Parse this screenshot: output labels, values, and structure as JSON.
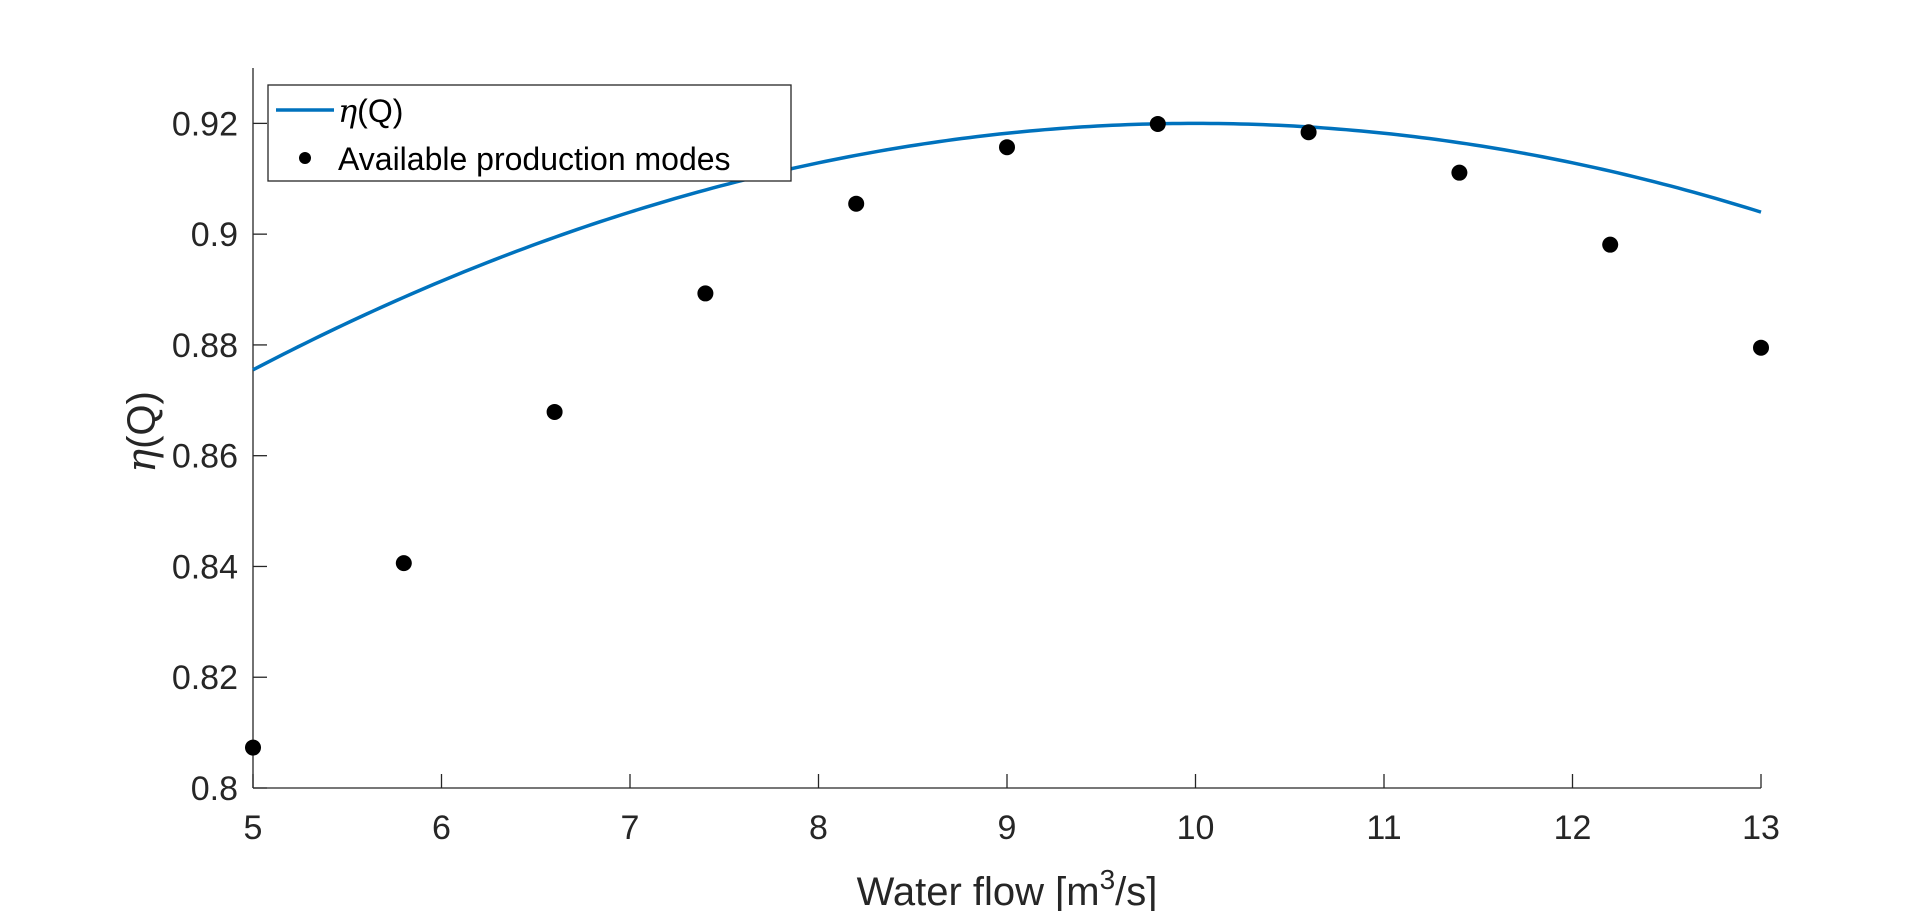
{
  "chart_data": {
    "type": "line",
    "title": "",
    "xlabel": {
      "base": "Water flow [m",
      "sup": "3",
      "rest": "/s]"
    },
    "ylabel": {
      "symbol": "η",
      "rest": "(Q)"
    },
    "xlim": [
      5,
      13
    ],
    "ylim": [
      0.8,
      0.93
    ],
    "xticks": [
      5,
      6,
      7,
      8,
      9,
      10,
      11,
      12,
      13
    ],
    "yticks": [
      0.8,
      0.82,
      0.84,
      0.86,
      0.88,
      0.9,
      0.92
    ],
    "ytick_labels": [
      "0.8",
      "0.82",
      "0.84",
      "0.86",
      "0.88",
      "0.9",
      "0.92"
    ],
    "grid": false,
    "legend_position": "top-left",
    "series": [
      {
        "name": {
          "symbol": "η",
          "rest": "(Q)"
        },
        "kind": "line",
        "color": "#0072BD",
        "curve": {
          "form": "quadratic",
          "vertex_x": 10,
          "vertex_y": 0.92,
          "curvature": -0.00178
        },
        "x_range": [
          5,
          13
        ]
      },
      {
        "name": "Available production modes",
        "kind": "scatter",
        "color": "#000000",
        "x": [
          5,
          5.8,
          6.6,
          7.4,
          8.2,
          9,
          9.8,
          10.6,
          11.4,
          12.2,
          13
        ],
        "y": [
          0.8073,
          0.8406,
          0.8679,
          0.8893,
          0.9055,
          0.9157,
          0.9199,
          0.9184,
          0.9111,
          0.8981,
          0.8795
        ]
      }
    ]
  }
}
